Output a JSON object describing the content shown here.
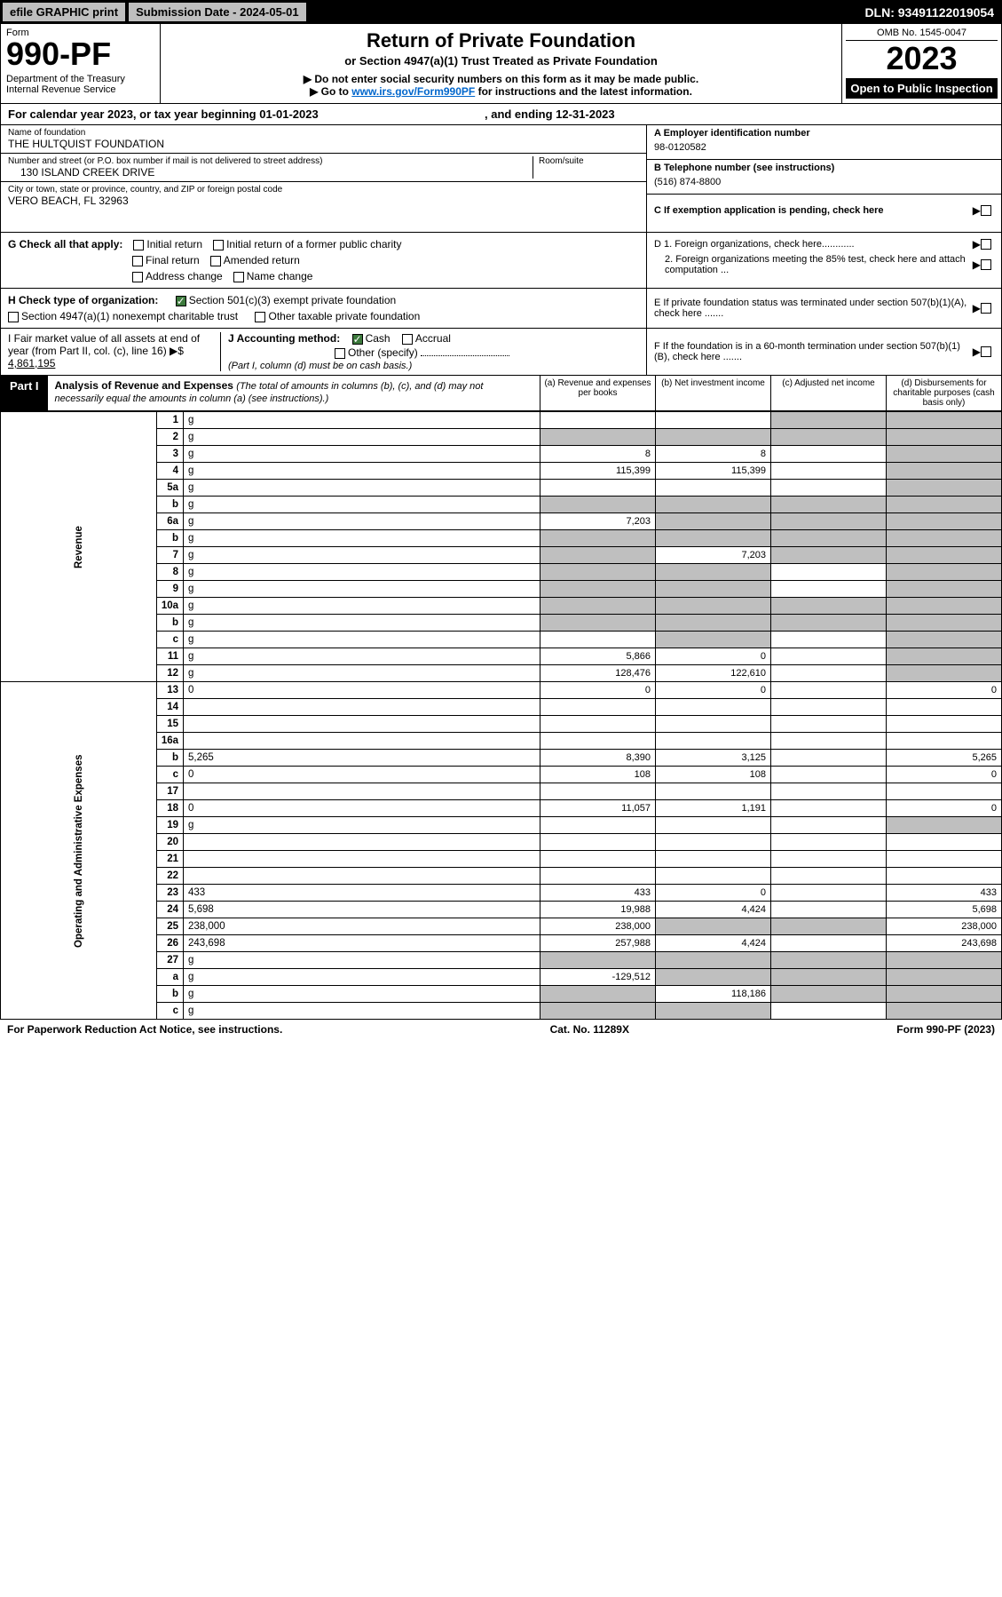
{
  "top_bar": {
    "efile": "efile GRAPHIC print",
    "sub_date": "Submission Date - 2024-05-01",
    "dln": "DLN: 93491122019054"
  },
  "header": {
    "form": "Form",
    "num": "990-PF",
    "dept": "Department of the Treasury\nInternal Revenue Service",
    "title": "Return of Private Foundation",
    "sub1": "or Section 4947(a)(1) Trust Treated as Private Foundation",
    "sub2a": "▶ Do not enter social security numbers on this form as it may be made public.",
    "sub2b": "▶ Go to ",
    "link": "www.irs.gov/Form990PF",
    "sub2c": " for instructions and the latest information.",
    "omb": "OMB No. 1545-0047",
    "year": "2023",
    "open": "Open to Public Inspection"
  },
  "cal_year": {
    "text": "For calendar year 2023, or tax year beginning 01-01-2023",
    "ending": ", and ending 12-31-2023"
  },
  "info_left": {
    "name_lbl": "Name of foundation",
    "name": "THE HULTQUIST FOUNDATION",
    "addr_lbl": "Number and street (or P.O. box number if mail is not delivered to street address)",
    "room_lbl": "Room/suite",
    "addr": "130 ISLAND CREEK DRIVE",
    "city_lbl": "City or town, state or province, country, and ZIP or foreign postal code",
    "city": "VERO BEACH, FL  32963"
  },
  "info_right": {
    "a_lbl": "A Employer identification number",
    "a_val": "98-0120582",
    "b_lbl": "B Telephone number (see instructions)",
    "b_val": "(516) 874-8800",
    "c_lbl": "C If exemption application is pending, check here"
  },
  "g": {
    "lbl": "G Check all that apply:",
    "initial": "Initial return",
    "init_former": "Initial return of a former public charity",
    "final": "Final return",
    "amended": "Amended return",
    "addr_chg": "Address change",
    "name_chg": "Name change"
  },
  "d": {
    "d1": "D 1. Foreign organizations, check here............",
    "d2": "2. Foreign organizations meeting the 85% test, check here and attach computation ..."
  },
  "h": {
    "lbl": "H Check type of organization:",
    "s501": "Section 501(c)(3) exempt private foundation",
    "s4947": "Section 4947(a)(1) nonexempt charitable trust",
    "other_tax": "Other taxable private foundation"
  },
  "e": {
    "lbl": "E  If private foundation status was terminated under section 507(b)(1)(A), check here ......."
  },
  "i": {
    "lbl": "I Fair market value of all assets at end of year (from Part II, col. (c), line 16) ▶$",
    "val": "4,861,195"
  },
  "j": {
    "lbl": "J Accounting method:",
    "cash": "Cash",
    "accrual": "Accrual",
    "other": "Other (specify)",
    "note": "(Part I, column (d) must be on cash basis.)"
  },
  "f": {
    "lbl": "F  If the foundation is in a 60-month termination under section 507(b)(1)(B), check here ......."
  },
  "part1": {
    "lbl": "Part I",
    "title": "Analysis of Revenue and Expenses",
    "note": "(The total of amounts in columns (b), (c), and (d) may not necessarily equal the amounts in column (a) (see instructions).)",
    "col_a": "(a)  Revenue and expenses per books",
    "col_b": "(b)  Net investment income",
    "col_c": "(c)  Adjusted net income",
    "col_d": "(d)  Disbursements for charitable purposes (cash basis only)"
  },
  "side": {
    "rev": "Revenue",
    "exp": "Operating and Administrative Expenses"
  },
  "rows": [
    {
      "n": "1",
      "d": "g",
      "a": "",
      "b": "",
      "c": "g"
    },
    {
      "n": "2",
      "d": "g",
      "a": "g",
      "b": "g",
      "c": "g"
    },
    {
      "n": "3",
      "d": "g",
      "a": "8",
      "b": "8",
      "c": ""
    },
    {
      "n": "4",
      "d": "g",
      "a": "115,399",
      "b": "115,399",
      "c": ""
    },
    {
      "n": "5a",
      "d": "g",
      "a": "",
      "b": "",
      "c": ""
    },
    {
      "n": "b",
      "d": "g",
      "a": "g",
      "b": "g",
      "c": "g"
    },
    {
      "n": "6a",
      "d": "g",
      "a": "7,203",
      "b": "g",
      "c": "g"
    },
    {
      "n": "b",
      "d": "g",
      "a": "g",
      "b": "g",
      "c": "g"
    },
    {
      "n": "7",
      "d": "g",
      "a": "g",
      "b": "7,203",
      "c": "g"
    },
    {
      "n": "8",
      "d": "g",
      "a": "g",
      "b": "g",
      "c": ""
    },
    {
      "n": "9",
      "d": "g",
      "a": "g",
      "b": "g",
      "c": ""
    },
    {
      "n": "10a",
      "d": "g",
      "a": "g",
      "b": "g",
      "c": "g"
    },
    {
      "n": "b",
      "d": "g",
      "a": "g",
      "b": "g",
      "c": "g"
    },
    {
      "n": "c",
      "d": "g",
      "a": "",
      "b": "g",
      "c": ""
    },
    {
      "n": "11",
      "d": "g",
      "a": "5,866",
      "b": "0",
      "c": ""
    },
    {
      "n": "12",
      "d": "g",
      "a": "128,476",
      "b": "122,610",
      "c": ""
    },
    {
      "n": "13",
      "d": "0",
      "a": "0",
      "b": "0",
      "c": ""
    },
    {
      "n": "14",
      "d": "",
      "a": "",
      "b": "",
      "c": ""
    },
    {
      "n": "15",
      "d": "",
      "a": "",
      "b": "",
      "c": ""
    },
    {
      "n": "16a",
      "d": "",
      "a": "",
      "b": "",
      "c": ""
    },
    {
      "n": "b",
      "d": "5,265",
      "a": "8,390",
      "b": "3,125",
      "c": ""
    },
    {
      "n": "c",
      "d": "0",
      "a": "108",
      "b": "108",
      "c": ""
    },
    {
      "n": "17",
      "d": "",
      "a": "",
      "b": "",
      "c": ""
    },
    {
      "n": "18",
      "d": "0",
      "a": "11,057",
      "b": "1,191",
      "c": ""
    },
    {
      "n": "19",
      "d": "g",
      "a": "",
      "b": "",
      "c": ""
    },
    {
      "n": "20",
      "d": "",
      "a": "",
      "b": "",
      "c": ""
    },
    {
      "n": "21",
      "d": "",
      "a": "",
      "b": "",
      "c": ""
    },
    {
      "n": "22",
      "d": "",
      "a": "",
      "b": "",
      "c": ""
    },
    {
      "n": "23",
      "d": "433",
      "a": "433",
      "b": "0",
      "c": ""
    },
    {
      "n": "24",
      "d": "5,698",
      "a": "19,988",
      "b": "4,424",
      "c": ""
    },
    {
      "n": "25",
      "d": "238,000",
      "a": "238,000",
      "b": "g",
      "c": "g"
    },
    {
      "n": "26",
      "d": "243,698",
      "a": "257,988",
      "b": "4,424",
      "c": ""
    },
    {
      "n": "27",
      "d": "g",
      "a": "g",
      "b": "g",
      "c": "g"
    },
    {
      "n": "a",
      "d": "g",
      "a": "-129,512",
      "b": "g",
      "c": "g"
    },
    {
      "n": "b",
      "d": "g",
      "a": "g",
      "b": "118,186",
      "c": "g"
    },
    {
      "n": "c",
      "d": "g",
      "a": "g",
      "b": "g",
      "c": ""
    }
  ],
  "footer": {
    "left": "For Paperwork Reduction Act Notice, see instructions.",
    "mid": "Cat. No. 11289X",
    "right": "Form 990-PF (2023)"
  },
  "colors": {
    "grey": "#bfbfbf",
    "black": "#000000",
    "link": "#0000cc",
    "green": "#3d7a3d"
  }
}
